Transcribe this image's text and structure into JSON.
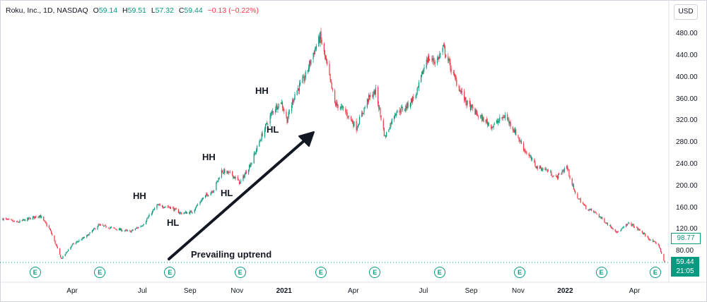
{
  "header": {
    "symbol": "Roku, Inc., 1D, NASDAQ",
    "open_label": "O",
    "open": "59.14",
    "high_label": "H",
    "high": "59.51",
    "low_label": "L",
    "low": "57.32",
    "close_label": "C",
    "close": "59.44",
    "change": "−0.13 (−0.22%)"
  },
  "currency_button": "USD",
  "last_price_label": "98.77",
  "current_price": {
    "value": "59.44",
    "countdown": "21:05"
  },
  "earnings_marker": "E",
  "colors": {
    "up": "#089981",
    "down": "#f23645",
    "text": "#131722",
    "grid": "#d1d4dc"
  },
  "chart_data": {
    "type": "candlestick",
    "title": "",
    "xlabel": "",
    "ylabel": "",
    "ylim": [
      45,
      500
    ],
    "y_ticks": [
      "480.00",
      "440.00",
      "400.00",
      "360.00",
      "320.00",
      "280.00",
      "240.00",
      "200.00",
      "160.00",
      "120.00",
      "80.00"
    ],
    "x_ticks": [
      {
        "label": "Apr",
        "bold": false
      },
      {
        "label": "Jul",
        "bold": false
      },
      {
        "label": "Sep",
        "bold": false
      },
      {
        "label": "Nov",
        "bold": false
      },
      {
        "label": "2021",
        "bold": true
      },
      {
        "label": "Apr",
        "bold": false
      },
      {
        "label": "Jul",
        "bold": false
      },
      {
        "label": "Sep",
        "bold": false
      },
      {
        "label": "Nov",
        "bold": false
      },
      {
        "label": "2022",
        "bold": true
      },
      {
        "label": "Apr",
        "bold": false
      }
    ],
    "x_tick_dates": [
      "2020-04-01",
      "2020-07-01",
      "2020-09-01",
      "2020-11-01",
      "2021-01-01",
      "2021-04-01",
      "2021-07-01",
      "2021-09-01",
      "2021-11-01",
      "2022-01-01",
      "2022-04-01"
    ],
    "x_range": [
      "2020-01-02",
      "2022-05-10"
    ],
    "price_path": [
      {
        "date": "2020-01-02",
        "price": 140
      },
      {
        "date": "2020-01-20",
        "price": 133
      },
      {
        "date": "2020-02-19",
        "price": 146
      },
      {
        "date": "2020-03-03",
        "price": 120
      },
      {
        "date": "2020-03-18",
        "price": 66
      },
      {
        "date": "2020-04-01",
        "price": 92
      },
      {
        "date": "2020-04-20",
        "price": 108
      },
      {
        "date": "2020-05-05",
        "price": 128
      },
      {
        "date": "2020-05-25",
        "price": 122
      },
      {
        "date": "2020-06-15",
        "price": 116
      },
      {
        "date": "2020-07-01",
        "price": 128
      },
      {
        "date": "2020-07-20",
        "price": 164
      },
      {
        "date": "2020-08-05",
        "price": 162
      },
      {
        "date": "2020-08-20",
        "price": 150
      },
      {
        "date": "2020-09-03",
        "price": 152
      },
      {
        "date": "2020-09-18",
        "price": 178
      },
      {
        "date": "2020-10-02",
        "price": 194
      },
      {
        "date": "2020-10-12",
        "price": 228
      },
      {
        "date": "2020-10-25",
        "price": 222
      },
      {
        "date": "2020-11-05",
        "price": 206
      },
      {
        "date": "2020-11-20",
        "price": 245
      },
      {
        "date": "2020-12-05",
        "price": 300
      },
      {
        "date": "2020-12-18",
        "price": 340
      },
      {
        "date": "2020-12-28",
        "price": 356
      },
      {
        "date": "2021-01-05",
        "price": 322
      },
      {
        "date": "2021-01-15",
        "price": 370
      },
      {
        "date": "2021-01-28",
        "price": 400
      },
      {
        "date": "2021-02-08",
        "price": 445
      },
      {
        "date": "2021-02-17",
        "price": 475
      },
      {
        "date": "2021-02-26",
        "price": 420
      },
      {
        "date": "2021-03-08",
        "price": 352
      },
      {
        "date": "2021-03-20",
        "price": 340
      },
      {
        "date": "2021-04-05",
        "price": 308
      },
      {
        "date": "2021-04-20",
        "price": 360
      },
      {
        "date": "2021-04-30",
        "price": 375
      },
      {
        "date": "2021-05-12",
        "price": 290
      },
      {
        "date": "2021-05-25",
        "price": 335
      },
      {
        "date": "2021-06-08",
        "price": 345
      },
      {
        "date": "2021-06-22",
        "price": 370
      },
      {
        "date": "2021-07-05",
        "price": 435
      },
      {
        "date": "2021-07-18",
        "price": 430
      },
      {
        "date": "2021-07-27",
        "price": 455
      },
      {
        "date": "2021-08-10",
        "price": 400
      },
      {
        "date": "2021-08-25",
        "price": 355
      },
      {
        "date": "2021-09-10",
        "price": 330
      },
      {
        "date": "2021-09-28",
        "price": 310
      },
      {
        "date": "2021-10-15",
        "price": 330
      },
      {
        "date": "2021-10-28",
        "price": 300
      },
      {
        "date": "2021-11-10",
        "price": 265
      },
      {
        "date": "2021-11-25",
        "price": 235
      },
      {
        "date": "2021-12-08",
        "price": 230
      },
      {
        "date": "2021-12-20",
        "price": 215
      },
      {
        "date": "2022-01-03",
        "price": 236
      },
      {
        "date": "2022-01-14",
        "price": 185
      },
      {
        "date": "2022-01-28",
        "price": 160
      },
      {
        "date": "2022-02-10",
        "price": 150
      },
      {
        "date": "2022-02-25",
        "price": 130
      },
      {
        "date": "2022-03-10",
        "price": 115
      },
      {
        "date": "2022-03-25",
        "price": 132
      },
      {
        "date": "2022-04-08",
        "price": 118
      },
      {
        "date": "2022-04-22",
        "price": 100
      },
      {
        "date": "2022-05-02",
        "price": 92
      },
      {
        "date": "2022-05-10",
        "price": 59.44
      }
    ],
    "earnings_dates": [
      "2020-02-13",
      "2020-05-07",
      "2020-08-06",
      "2020-11-05",
      "2021-02-18",
      "2021-04-29",
      "2021-07-22",
      "2021-11-03",
      "2022-02-17",
      "2022-04-28"
    ],
    "annotations": [
      {
        "text": "HH"
      },
      {
        "text": "HL"
      },
      {
        "text": "HH"
      },
      {
        "text": "HL"
      },
      {
        "text": "HH"
      },
      {
        "text": "HL"
      },
      {
        "text": "Prevailing uptrend"
      }
    ]
  }
}
